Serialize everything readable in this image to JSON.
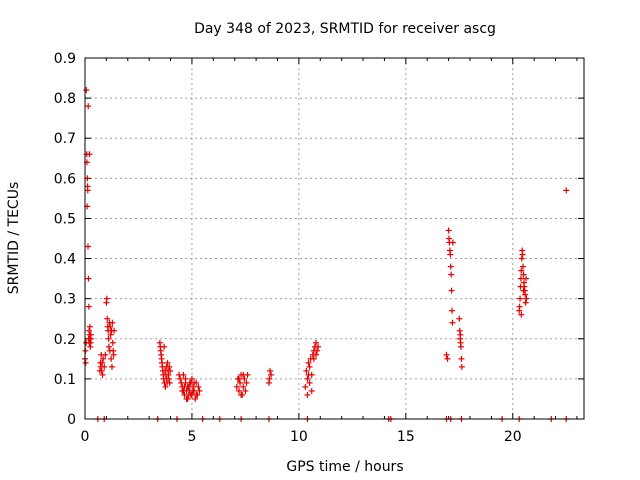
{
  "chart_data": {
    "type": "scatter",
    "title": "Day 348 of 2023, SRMTID for receiver ascg",
    "xlabel": "GPS time / hours",
    "ylabel": "SRMTID / TECUs",
    "xlim": [
      0,
      23.33
    ],
    "ylim": [
      0,
      0.9
    ],
    "xticks": [
      0,
      5,
      10,
      15,
      20
    ],
    "xtick_labels": [
      "0",
      "5",
      "10",
      "15",
      "20"
    ],
    "yticks": [
      0,
      0.1,
      0.2,
      0.3,
      0.4,
      0.5,
      0.6,
      0.7,
      0.8,
      0.9
    ],
    "ytick_labels": [
      "0",
      "0.1",
      "0.2",
      "0.3",
      "0.4",
      "0.5",
      "0.6",
      "0.7",
      "0.8",
      "0.9"
    ],
    "grid": true,
    "marker": "+",
    "color": "#e60000",
    "series": [
      {
        "name": "SRMTID",
        "points": [
          [
            0.0,
            0.15
          ],
          [
            0.02,
            0.17
          ],
          [
            0.03,
            0.14
          ],
          [
            0.05,
            0.19
          ],
          [
            0.06,
            0.82
          ],
          [
            0.08,
            0.66
          ],
          [
            0.09,
            0.64
          ],
          [
            0.1,
            0.53
          ],
          [
            0.11,
            0.6
          ],
          [
            0.12,
            0.58
          ],
          [
            0.13,
            0.57
          ],
          [
            0.14,
            0.43
          ],
          [
            0.15,
            0.78
          ],
          [
            0.16,
            0.35
          ],
          [
            0.17,
            0.2
          ],
          [
            0.18,
            0.28
          ],
          [
            0.19,
            0.22
          ],
          [
            0.2,
            0.19
          ],
          [
            0.21,
            0.66
          ],
          [
            0.22,
            0.21
          ],
          [
            0.23,
            0.23
          ],
          [
            0.24,
            0.2
          ],
          [
            0.25,
            0.18
          ],
          [
            0.26,
            0.19
          ],
          [
            0.27,
            0.21
          ],
          [
            0.28,
            0.2
          ],
          [
            0.7,
            0.12
          ],
          [
            0.72,
            0.14
          ],
          [
            0.74,
            0.13
          ],
          [
            0.76,
            0.16
          ],
          [
            0.78,
            0.12
          ],
          [
            0.8,
            0.14
          ],
          [
            0.82,
            0.11
          ],
          [
            0.85,
            0.15
          ],
          [
            0.9,
            0.13
          ],
          [
            0.95,
            0.16
          ],
          [
            1.0,
            0.29
          ],
          [
            1.02,
            0.3
          ],
          [
            1.04,
            0.25
          ],
          [
            1.06,
            0.23
          ],
          [
            1.08,
            0.22
          ],
          [
            1.1,
            0.2
          ],
          [
            1.12,
            0.18
          ],
          [
            1.14,
            0.24
          ],
          [
            1.16,
            0.17
          ],
          [
            1.18,
            0.23
          ],
          [
            1.2,
            0.21
          ],
          [
            1.22,
            0.15
          ],
          [
            1.24,
            0.22
          ],
          [
            1.26,
            0.13
          ],
          [
            1.28,
            0.24
          ],
          [
            1.3,
            0.19
          ],
          [
            1.32,
            0.17
          ],
          [
            1.34,
            0.16
          ],
          [
            1.36,
            0.22
          ],
          [
            3.5,
            0.19
          ],
          [
            3.52,
            0.18
          ],
          [
            3.54,
            0.17
          ],
          [
            3.56,
            0.16
          ],
          [
            3.58,
            0.15
          ],
          [
            3.6,
            0.14
          ],
          [
            3.62,
            0.13
          ],
          [
            3.64,
            0.12
          ],
          [
            3.66,
            0.11
          ],
          [
            3.68,
            0.1
          ],
          [
            3.7,
            0.18
          ],
          [
            3.72,
            0.09
          ],
          [
            3.74,
            0.12
          ],
          [
            3.76,
            0.08
          ],
          [
            3.78,
            0.11
          ],
          [
            3.8,
            0.13
          ],
          [
            3.82,
            0.1
          ],
          [
            3.84,
            0.09
          ],
          [
            3.86,
            0.14
          ],
          [
            3.88,
            0.12
          ],
          [
            3.9,
            0.11
          ],
          [
            3.92,
            0.1
          ],
          [
            3.94,
            0.13
          ],
          [
            3.96,
            0.09
          ],
          [
            3.98,
            0.12
          ],
          [
            4.4,
            0.11
          ],
          [
            4.45,
            0.1
          ],
          [
            4.5,
            0.09
          ],
          [
            4.55,
            0.08
          ],
          [
            4.6,
            0.07
          ],
          [
            4.65,
            0.06
          ],
          [
            4.7,
            0.1
          ],
          [
            4.75,
            0.05
          ],
          [
            4.8,
            0.08
          ],
          [
            4.85,
            0.06
          ],
          [
            4.9,
            0.07
          ],
          [
            4.95,
            0.09
          ],
          [
            5.0,
            0.06
          ],
          [
            5.05,
            0.08
          ],
          [
            5.1,
            0.07
          ],
          [
            5.15,
            0.05
          ],
          [
            5.2,
            0.09
          ],
          [
            5.25,
            0.06
          ],
          [
            5.3,
            0.08
          ],
          [
            5.35,
            0.07
          ],
          [
            4.6,
            0.11
          ],
          [
            4.7,
            0.09
          ],
          [
            4.8,
            0.05
          ],
          [
            4.9,
            0.09
          ],
          [
            5.0,
            0.1
          ],
          [
            5.1,
            0.09
          ],
          [
            5.2,
            0.06
          ],
          [
            4.55,
            0.07
          ],
          [
            4.65,
            0.08
          ],
          [
            4.75,
            0.07
          ],
          [
            4.85,
            0.08
          ],
          [
            4.95,
            0.06
          ],
          [
            5.05,
            0.07
          ],
          [
            7.1,
            0.08
          ],
          [
            7.15,
            0.1
          ],
          [
            7.2,
            0.07
          ],
          [
            7.25,
            0.09
          ],
          [
            7.3,
            0.11
          ],
          [
            7.35,
            0.06
          ],
          [
            7.4,
            0.08
          ],
          [
            7.45,
            0.1
          ],
          [
            7.5,
            0.07
          ],
          [
            7.55,
            0.09
          ],
          [
            7.6,
            0.11
          ],
          [
            7.3,
            0.06
          ],
          [
            7.4,
            0.11
          ],
          [
            7.2,
            0.1
          ],
          [
            8.6,
            0.09
          ],
          [
            8.65,
            0.12
          ],
          [
            8.7,
            0.11
          ],
          [
            8.62,
            0.1
          ],
          [
            10.3,
            0.08
          ],
          [
            10.35,
            0.12
          ],
          [
            10.4,
            0.1
          ],
          [
            10.45,
            0.14
          ],
          [
            10.5,
            0.09
          ],
          [
            10.55,
            0.15
          ],
          [
            10.6,
            0.07
          ],
          [
            10.65,
            0.16
          ],
          [
            10.7,
            0.17
          ],
          [
            10.75,
            0.18
          ],
          [
            10.8,
            0.19
          ],
          [
            10.85,
            0.17
          ],
          [
            10.9,
            0.18
          ],
          [
            10.5,
            0.13
          ],
          [
            10.6,
            0.11
          ],
          [
            10.7,
            0.15
          ],
          [
            10.8,
            0.16
          ],
          [
            10.4,
            0.06
          ],
          [
            10.45,
            0.11
          ],
          [
            16.9,
            0.16
          ],
          [
            16.95,
            0.15
          ],
          [
            17.0,
            0.47
          ],
          [
            17.02,
            0.45
          ],
          [
            17.04,
            0.44
          ],
          [
            17.06,
            0.42
          ],
          [
            17.08,
            0.41
          ],
          [
            17.1,
            0.38
          ],
          [
            17.12,
            0.36
          ],
          [
            17.14,
            0.32
          ],
          [
            17.16,
            0.27
          ],
          [
            17.18,
            0.24
          ],
          [
            17.2,
            0.44
          ],
          [
            17.5,
            0.25
          ],
          [
            17.52,
            0.22
          ],
          [
            17.54,
            0.2
          ],
          [
            17.56,
            0.19
          ],
          [
            17.58,
            0.18
          ],
          [
            17.6,
            0.15
          ],
          [
            17.62,
            0.13
          ],
          [
            17.55,
            0.21
          ],
          [
            20.3,
            0.27
          ],
          [
            20.32,
            0.28
          ],
          [
            20.34,
            0.3
          ],
          [
            20.36,
            0.33
          ],
          [
            20.38,
            0.35
          ],
          [
            20.4,
            0.37
          ],
          [
            20.42,
            0.4
          ],
          [
            20.44,
            0.42
          ],
          [
            20.46,
            0.41
          ],
          [
            20.48,
            0.38
          ],
          [
            20.5,
            0.36
          ],
          [
            20.52,
            0.34
          ],
          [
            20.54,
            0.33
          ],
          [
            20.56,
            0.32
          ],
          [
            20.58,
            0.31
          ],
          [
            20.6,
            0.29
          ],
          [
            20.62,
            0.35
          ],
          [
            20.64,
            0.3
          ],
          [
            20.4,
            0.26
          ],
          [
            20.5,
            0.32
          ],
          [
            22.5,
            0.57
          ],
          [
            0.6,
            0.0
          ],
          [
            0.9,
            0.0
          ],
          [
            3.4,
            0.0
          ],
          [
            4.3,
            0.0
          ],
          [
            5.5,
            0.0
          ],
          [
            6.3,
            0.0
          ],
          [
            7.3,
            0.0
          ],
          [
            8.6,
            0.0
          ],
          [
            10.4,
            0.0
          ],
          [
            14.2,
            0.0
          ],
          [
            14.3,
            0.0
          ],
          [
            16.9,
            0.0
          ],
          [
            17.1,
            0.0
          ],
          [
            17.6,
            0.0
          ],
          [
            19.5,
            0.0
          ],
          [
            20.3,
            0.0
          ],
          [
            21.8,
            0.0
          ],
          [
            22.5,
            0.0
          ]
        ]
      }
    ]
  }
}
